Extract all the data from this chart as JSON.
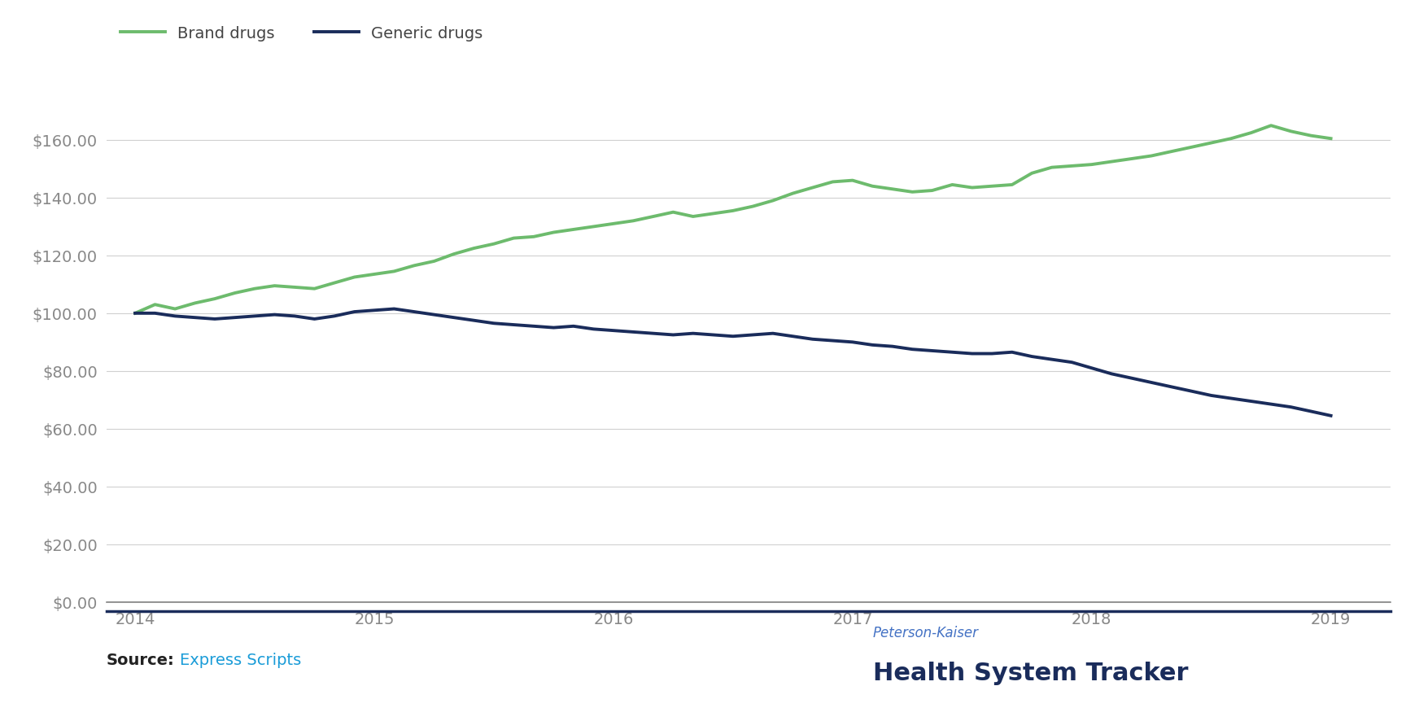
{
  "brand_x": [
    2014.0,
    2014.083,
    2014.167,
    2014.25,
    2014.333,
    2014.417,
    2014.5,
    2014.583,
    2014.667,
    2014.75,
    2014.833,
    2014.917,
    2015.0,
    2015.083,
    2015.167,
    2015.25,
    2015.333,
    2015.417,
    2015.5,
    2015.583,
    2015.667,
    2015.75,
    2015.833,
    2015.917,
    2016.0,
    2016.083,
    2016.167,
    2016.25,
    2016.333,
    2016.417,
    2016.5,
    2016.583,
    2016.667,
    2016.75,
    2016.833,
    2016.917,
    2017.0,
    2017.083,
    2017.167,
    2017.25,
    2017.333,
    2017.417,
    2017.5,
    2017.583,
    2017.667,
    2017.75,
    2017.833,
    2017.917,
    2018.0,
    2018.083,
    2018.167,
    2018.25,
    2018.333,
    2018.417,
    2018.5,
    2018.583,
    2018.667,
    2018.75,
    2018.833,
    2018.917,
    2019.0
  ],
  "brand_y": [
    100.0,
    103.0,
    101.5,
    103.5,
    105.0,
    107.0,
    108.5,
    109.5,
    109.0,
    108.5,
    110.5,
    112.5,
    113.5,
    114.5,
    116.5,
    118.0,
    120.5,
    122.5,
    124.0,
    126.0,
    126.5,
    128.0,
    129.0,
    130.0,
    131.0,
    132.0,
    133.5,
    135.0,
    133.5,
    134.5,
    135.5,
    137.0,
    139.0,
    141.5,
    143.5,
    145.5,
    146.0,
    144.0,
    143.0,
    142.0,
    142.5,
    144.5,
    143.5,
    144.0,
    144.5,
    148.5,
    150.5,
    151.0,
    151.5,
    152.5,
    153.5,
    154.5,
    156.0,
    157.5,
    159.0,
    160.5,
    162.5,
    165.0,
    163.0,
    161.5,
    160.5
  ],
  "generic_x": [
    2014.0,
    2014.083,
    2014.167,
    2014.25,
    2014.333,
    2014.417,
    2014.5,
    2014.583,
    2014.667,
    2014.75,
    2014.833,
    2014.917,
    2015.0,
    2015.083,
    2015.167,
    2015.25,
    2015.333,
    2015.417,
    2015.5,
    2015.583,
    2015.667,
    2015.75,
    2015.833,
    2015.917,
    2016.0,
    2016.083,
    2016.167,
    2016.25,
    2016.333,
    2016.417,
    2016.5,
    2016.583,
    2016.667,
    2016.75,
    2016.833,
    2016.917,
    2017.0,
    2017.083,
    2017.167,
    2017.25,
    2017.333,
    2017.417,
    2017.5,
    2017.583,
    2017.667,
    2017.75,
    2017.833,
    2017.917,
    2018.0,
    2018.083,
    2018.167,
    2018.25,
    2018.333,
    2018.417,
    2018.5,
    2018.583,
    2018.667,
    2018.75,
    2018.833,
    2018.917,
    2019.0
  ],
  "generic_y": [
    100.0,
    100.0,
    99.0,
    98.5,
    98.0,
    98.5,
    99.0,
    99.5,
    99.0,
    98.0,
    99.0,
    100.5,
    101.0,
    101.5,
    100.5,
    99.5,
    98.5,
    97.5,
    96.5,
    96.0,
    95.5,
    95.0,
    95.5,
    94.5,
    94.0,
    93.5,
    93.0,
    92.5,
    93.0,
    92.5,
    92.0,
    92.5,
    93.0,
    92.0,
    91.0,
    90.5,
    90.0,
    89.0,
    88.5,
    87.5,
    87.0,
    86.5,
    86.0,
    86.0,
    86.5,
    85.0,
    84.0,
    83.0,
    81.0,
    79.0,
    77.5,
    76.0,
    74.5,
    73.0,
    71.5,
    70.5,
    69.5,
    68.5,
    67.5,
    66.0,
    64.5
  ],
  "brand_color": "#6dbb6d",
  "generic_color": "#1a2c5b",
  "brand_label": "Brand drugs",
  "generic_label": "Generic drugs",
  "ylim": [
    0,
    175
  ],
  "yticks": [
    0,
    20,
    40,
    60,
    80,
    100,
    120,
    140,
    160
  ],
  "xticks": [
    2014,
    2015,
    2016,
    2017,
    2018,
    2019
  ],
  "xlim": [
    2013.88,
    2019.25
  ],
  "source_label": "Source:",
  "source_link": "Express Scripts",
  "source_link_color": "#1a9cd8",
  "pk_label_top": "Peterson-Kaiser",
  "pk_label_bottom": "Health System Tracker",
  "pk_color_top": "#4472c4",
  "pk_color_bottom": "#1a2c5b",
  "bg_color": "#ffffff",
  "separator_color": "#1a2c5b",
  "grid_color": "#d0d0d0",
  "line_width": 2.8,
  "legend_fontsize": 14,
  "tick_fontsize": 14,
  "source_fontsize": 14,
  "pk_top_fontsize": 12,
  "pk_bottom_fontsize": 22
}
